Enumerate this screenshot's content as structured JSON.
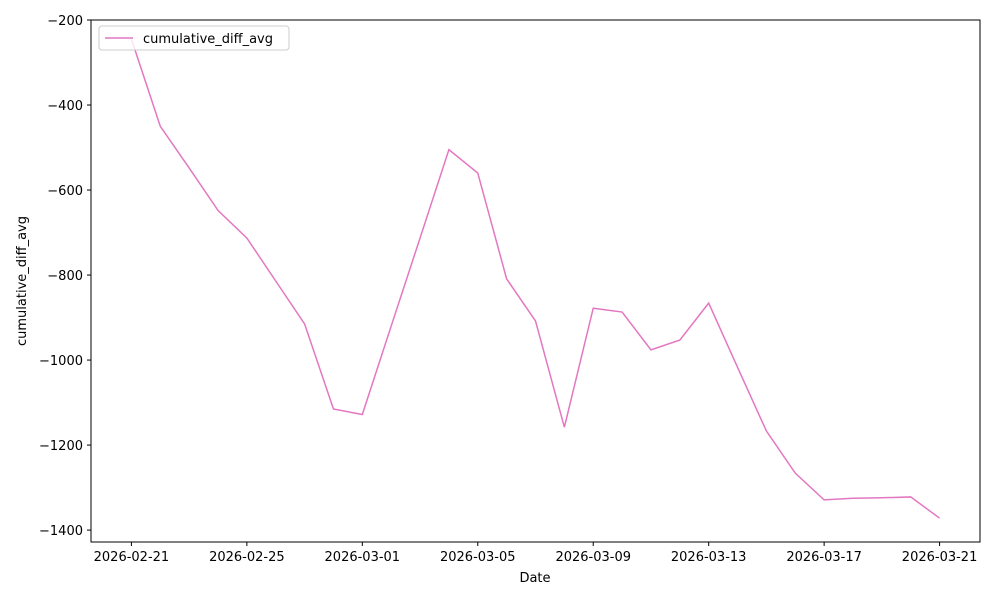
{
  "chart_data": {
    "type": "line",
    "x_label": "Date",
    "y_label": "cumulative_diff_avg",
    "x": [
      "2026-02-21",
      "2026-02-22",
      "2026-02-23",
      "2026-02-24",
      "2026-02-25",
      "2026-02-26",
      "2026-02-27",
      "2026-02-28",
      "2026-03-01",
      "2026-03-02",
      "2026-03-03",
      "2026-03-04",
      "2026-03-05",
      "2026-03-06",
      "2026-03-07",
      "2026-03-08",
      "2026-03-09",
      "2026-03-10",
      "2026-03-11",
      "2026-03-12",
      "2026-03-13",
      "2026-03-14",
      "2026-03-15",
      "2026-03-16",
      "2026-03-17",
      "2026-03-18",
      "2026-03-19",
      "2026-03-20",
      "2026-03-21"
    ],
    "series": [
      {
        "name": "cumulative_diff_avg",
        "color": "#e377c2",
        "values": [
          -245,
          -450,
          -548,
          -648,
          -713,
          -814,
          -915,
          -1115,
          -1128,
          -920,
          -713,
          -505,
          -560,
          -809,
          -908,
          -1158,
          -878,
          -887,
          -976,
          -953,
          -866,
          -1017,
          -1167,
          -1266,
          -1329,
          -1325,
          -1324,
          -1322,
          -1372
        ]
      }
    ],
    "xlim": [
      "2026-02-19T14:24:00Z",
      "2026-03-22T09:36:00Z"
    ],
    "xticks": [
      "2026-02-21",
      "2026-02-25",
      "2026-03-01",
      "2026-03-05",
      "2026-03-09",
      "2026-03-13",
      "2026-03-17",
      "2026-03-21"
    ],
    "ylim": [
      -1428,
      -200
    ],
    "yticks": [
      {
        "value": -200,
        "label": "−200"
      },
      {
        "value": -400,
        "label": "−400"
      },
      {
        "value": -600,
        "label": "−600"
      },
      {
        "value": -800,
        "label": "−800"
      },
      {
        "value": -1000,
        "label": "−1000"
      },
      {
        "value": -1200,
        "label": "−1200"
      },
      {
        "value": -1400,
        "label": "−1400"
      }
    ],
    "grid": false,
    "legend": "upper left"
  }
}
